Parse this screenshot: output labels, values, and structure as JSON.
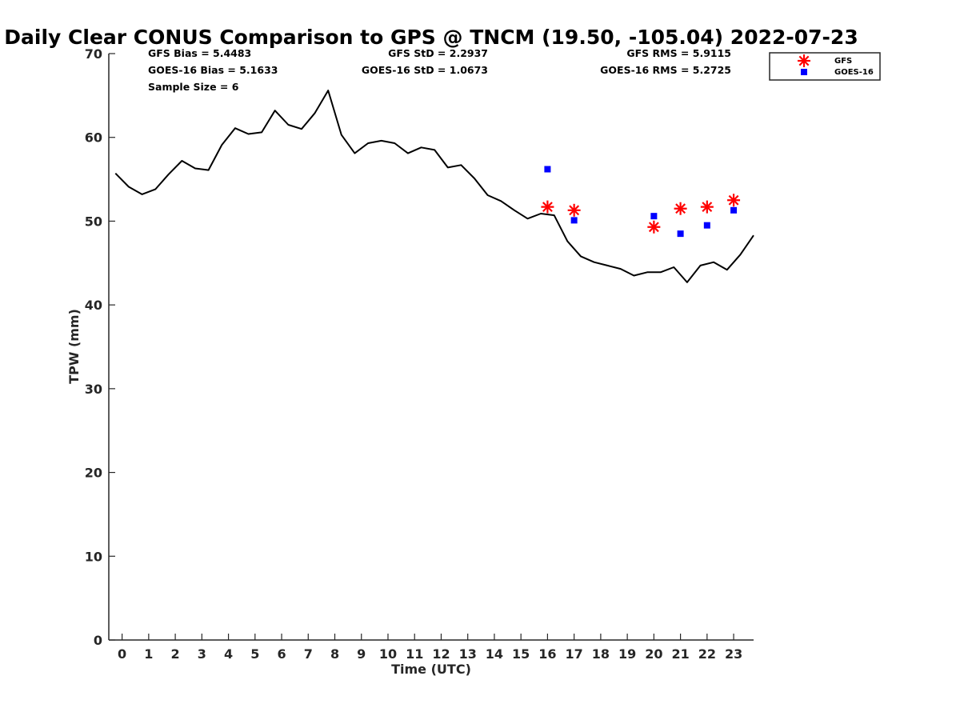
{
  "chart_data": {
    "type": "line",
    "title": "Daily Clear CONUS Comparison to GPS @ TNCM (19.50, -105.04) 2022-07-23",
    "xlabel": "Time (UTC)",
    "ylabel": "TPW (mm)",
    "xlim": [
      -0.5,
      23.75
    ],
    "ylim": [
      0,
      70
    ],
    "x_ticks": [
      0,
      1,
      2,
      3,
      4,
      5,
      6,
      7,
      8,
      9,
      10,
      11,
      12,
      13,
      14,
      15,
      16,
      17,
      18,
      19,
      20,
      21,
      22,
      23
    ],
    "y_ticks": [
      0,
      10,
      20,
      30,
      40,
      50,
      60,
      70
    ],
    "grid": false,
    "legend_position": "top-right",
    "stats": {
      "gfs_bias": "GFS Bias = 5.4483",
      "goes_bias": "GOES-16 Bias = 5.1633",
      "sample_size": "Sample Size = 6",
      "gfs_std": "GFS StD = 2.2937",
      "goes_std": "GOES-16 StD = 1.0673",
      "gfs_rms": "GFS RMS = 5.9115",
      "goes_rms": "GOES-16 RMS = 5.2725"
    },
    "series": [
      {
        "kind": "line",
        "color": "#000000",
        "x": [
          -0.25,
          0.25,
          0.75,
          1.25,
          1.75,
          2.25,
          2.75,
          3.25,
          3.75,
          4.25,
          4.75,
          5.25,
          5.75,
          6.25,
          6.75,
          7.25,
          7.75,
          8.25,
          8.75,
          9.25,
          9.75,
          10.25,
          10.75,
          11.25,
          11.75,
          12.25,
          12.75,
          13.25,
          13.75,
          14.25,
          14.75,
          15.25,
          15.75,
          16.25,
          16.75,
          17.25,
          17.75,
          18.25,
          18.75,
          19.25,
          19.75,
          20.25,
          20.75,
          21.25,
          21.75,
          22.25,
          22.75,
          23.25,
          23.75
        ],
        "y": [
          55.7,
          54.1,
          53.2,
          53.8,
          55.6,
          57.2,
          56.3,
          56.1,
          59.1,
          61.1,
          60.4,
          60.6,
          63.2,
          61.5,
          61.0,
          62.9,
          65.6,
          60.3,
          58.1,
          59.3,
          59.6,
          59.3,
          58.1,
          58.8,
          58.5,
          56.4,
          56.7,
          55.1,
          53.1,
          52.4,
          51.3,
          50.3,
          50.9,
          50.7,
          47.6,
          45.8,
          45.1,
          44.7,
          44.3,
          43.5,
          43.9,
          43.9,
          44.5,
          42.7,
          44.7,
          45.1,
          44.2,
          46.0,
          48.3
        ]
      },
      {
        "name": "GFS",
        "kind": "scatter",
        "marker": "asterisk",
        "color": "#ff0000",
        "x": [
          16,
          17,
          20,
          21,
          22,
          23
        ],
        "y": [
          51.7,
          51.3,
          49.3,
          51.5,
          51.7,
          52.5
        ]
      },
      {
        "name": "GOES-16",
        "kind": "scatter",
        "marker": "square",
        "color": "#0000ff",
        "x": [
          16,
          17,
          20,
          21,
          22,
          23
        ],
        "y": [
          56.2,
          50.1,
          50.6,
          48.5,
          49.5,
          51.3
        ]
      }
    ]
  }
}
